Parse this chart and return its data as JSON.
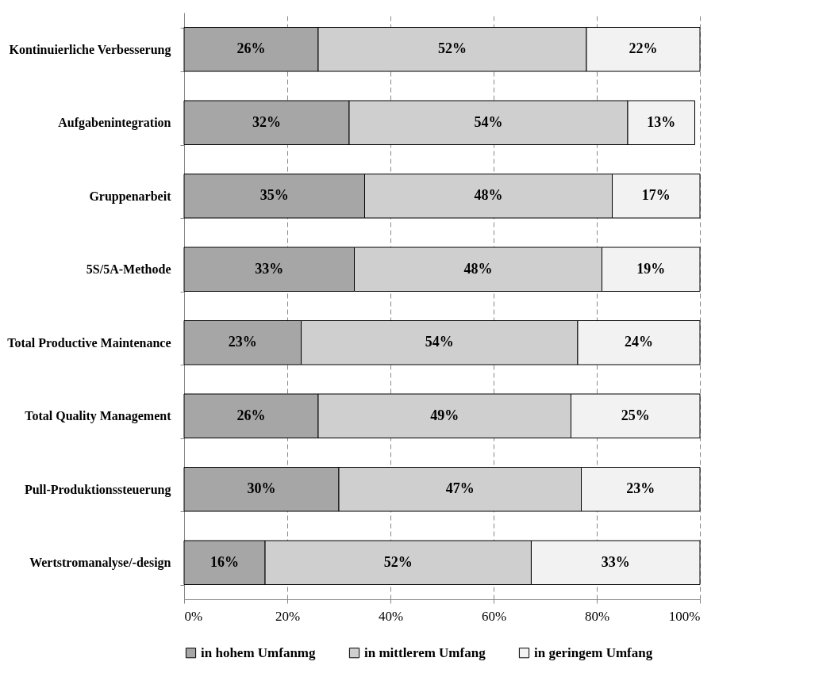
{
  "chart_data": {
    "type": "bar",
    "orientation": "horizontal",
    "stacked": true,
    "categories": [
      "Kontinuierliche Verbesserung",
      "Aufgabenintegration",
      "Gruppenarbeit",
      "5S/5A-Methode",
      "Total Productive Maintenance",
      "Total Quality Management",
      "Pull-Produktionssteuerung",
      "Wertstromanalyse/-design"
    ],
    "series": [
      {
        "name": "in hohem Umfanmg",
        "color": "#a6a6a6",
        "values": [
          26,
          32,
          35,
          33,
          22.7,
          26,
          30,
          15.7
        ],
        "value_labels": [
          "26%",
          "32%",
          "35%",
          "33%",
          "23%",
          "26%",
          "30%",
          "16%"
        ]
      },
      {
        "name": "in mittlerem Umfang",
        "color": "#cfcfcf",
        "values": [
          52,
          54,
          48,
          48,
          53.6,
          49,
          47,
          51.6
        ],
        "value_labels": [
          "52%",
          "54%",
          "48%",
          "48%",
          "54%",
          "49%",
          "47%",
          "52%"
        ]
      },
      {
        "name": "in geringem Umfang",
        "color": "#f2f2f2",
        "values": [
          22,
          13,
          17,
          19,
          23.7,
          25,
          23,
          32.7
        ],
        "value_labels": [
          "22%",
          "13%",
          "17%",
          "19%",
          "24%",
          "25%",
          "23%",
          "33%"
        ]
      }
    ],
    "xlim": [
      0,
      100
    ],
    "xticks": [
      {
        "value": 0,
        "label": "0%"
      },
      {
        "value": 20,
        "label": "20%"
      },
      {
        "value": 40,
        "label": "40%"
      },
      {
        "value": 60,
        "label": "60%"
      },
      {
        "value": 80,
        "label": "80%"
      },
      {
        "value": 100,
        "label": "100%"
      }
    ],
    "grid": "x",
    "line_style": "dashed",
    "legend": "bottom"
  }
}
